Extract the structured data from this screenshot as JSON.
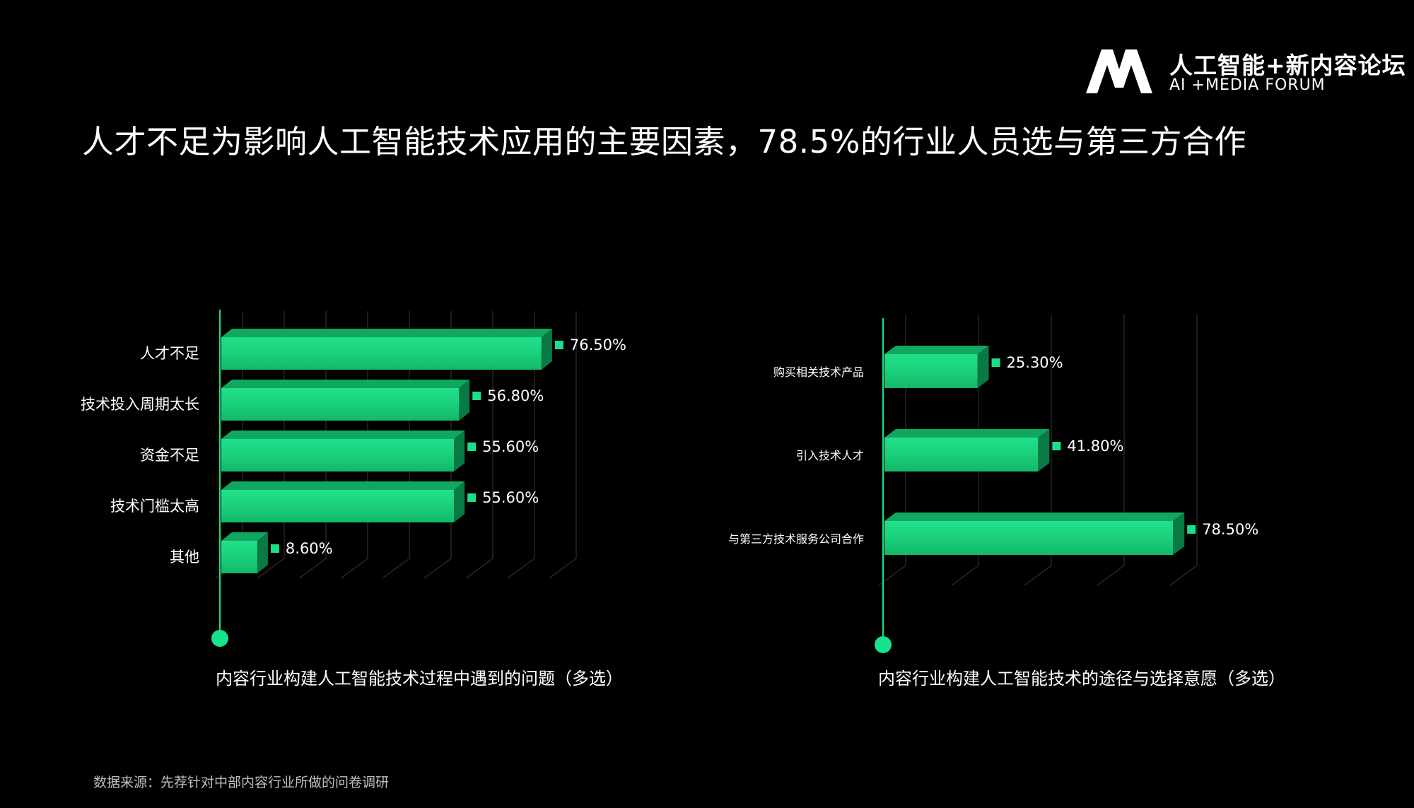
{
  "header": {
    "logo_cn": "人工智能+新内容论坛",
    "logo_en": "AI +MEDIA FORUM",
    "headline": "人才不足为影响人工智能技术应用的主要因素，78.5%的行业人员选与第三方合作"
  },
  "source": "数据来源：先荐针对中部内容行业所做的问卷调研",
  "colors": {
    "bar_front": "#1bd47e",
    "bar_top": "#10a860",
    "bar_side": "#0a7a45",
    "axis": "#18e28a",
    "grid": "#2e2e2e",
    "marker": "#1be08a"
  },
  "chart_data": [
    {
      "type": "bar",
      "orientation": "horizontal",
      "title": "内容行业构建人工智能技术过程中遇到的问题（多选）",
      "categories": [
        "人才不足",
        "技术投入周期太长",
        "资金不足",
        "技术门槛太高",
        "其他"
      ],
      "values": [
        76.5,
        56.8,
        55.6,
        55.6,
        8.6
      ],
      "value_labels": [
        "76.50%",
        "56.80%",
        "55.60%",
        "55.60%",
        "8.60%"
      ],
      "xlim": [
        0,
        100
      ],
      "grid": true
    },
    {
      "type": "bar",
      "orientation": "horizontal",
      "title": "内容行业构建人工智能技术的途径与选择意愿（多选）",
      "categories": [
        "购买相关技术产品",
        "引入技术人才",
        "与第三方技术服务公司合作"
      ],
      "values": [
        25.3,
        41.8,
        78.5
      ],
      "value_labels": [
        "25.30%",
        "41.80%",
        "78.50%"
      ],
      "xlim": [
        0,
        100
      ],
      "grid": true
    }
  ]
}
